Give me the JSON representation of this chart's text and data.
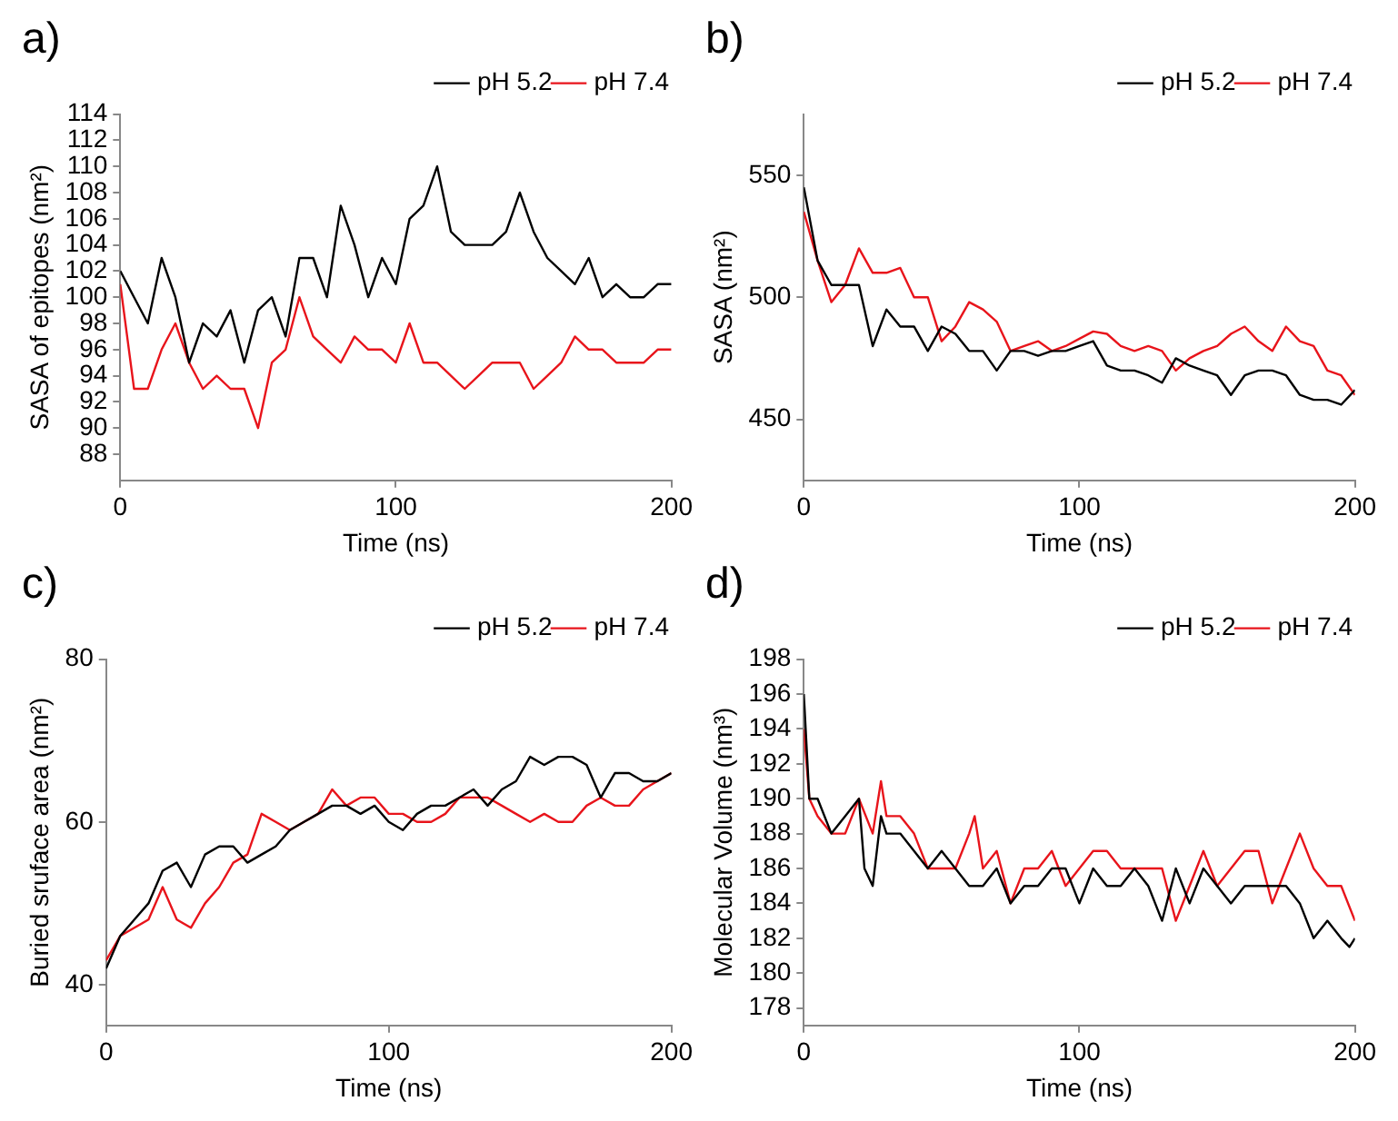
{
  "chart_data": [
    {
      "type": "line",
      "title": "a)",
      "xlabel": "Time (ns)",
      "ylabel": "SASA of epitopes (nm²)",
      "x": [
        0,
        5,
        10,
        15,
        20,
        25,
        30,
        35,
        40,
        45,
        50,
        55,
        60,
        65,
        70,
        75,
        80,
        85,
        90,
        95,
        100,
        105,
        110,
        115,
        120,
        125,
        130,
        135,
        140,
        145,
        150,
        155,
        160,
        165,
        170,
        175,
        180,
        185,
        190,
        195,
        200
      ],
      "xlim": [
        0,
        200
      ],
      "xticks": [
        0,
        100,
        200
      ],
      "ylim": [
        86,
        114
      ],
      "yticks": [
        88,
        90,
        92,
        94,
        96,
        98,
        100,
        102,
        104,
        106,
        108,
        110,
        112,
        114
      ],
      "grid": false,
      "legend": "top right",
      "marker": "none",
      "series": [
        {
          "name": "pH 5.2",
          "color": "#000000",
          "values": [
            102,
            100,
            98,
            103,
            100,
            95,
            98,
            97,
            99,
            95,
            99,
            100,
            97,
            103,
            103,
            100,
            107,
            104,
            100,
            103,
            101,
            106,
            107,
            110,
            105,
            104,
            104,
            104,
            105,
            108,
            105,
            103,
            102,
            101,
            103,
            100,
            101,
            100,
            100,
            101,
            101
          ]
        },
        {
          "name": "pH 7.4",
          "color": "#e8141b",
          "values": [
            101,
            93,
            93,
            96,
            98,
            95,
            93,
            94,
            93,
            93,
            90,
            95,
            96,
            100,
            97,
            96,
            95,
            97,
            96,
            96,
            95,
            98,
            95,
            95,
            94,
            93,
            94,
            95,
            95,
            95,
            93,
            94,
            95,
            97,
            96,
            96,
            95,
            95,
            95,
            96,
            96
          ]
        }
      ]
    },
    {
      "type": "line",
      "title": "b)",
      "xlabel": "Time (ns)",
      "ylabel": "SASA (nm²)",
      "x": [
        0,
        5,
        10,
        15,
        20,
        25,
        30,
        35,
        40,
        45,
        50,
        55,
        60,
        65,
        70,
        75,
        80,
        85,
        90,
        95,
        100,
        105,
        110,
        115,
        120,
        125,
        130,
        135,
        140,
        145,
        150,
        155,
        160,
        165,
        170,
        175,
        180,
        185,
        190,
        195,
        200
      ],
      "xlim": [
        0,
        200
      ],
      "xticks": [
        0,
        100,
        200
      ],
      "ylim": [
        425,
        575
      ],
      "yticks": [
        450,
        500,
        550
      ],
      "grid": false,
      "legend": "top right",
      "marker": "none",
      "series": [
        {
          "name": "pH 5.2",
          "color": "#000000",
          "values": [
            545,
            515,
            505,
            505,
            505,
            480,
            495,
            488,
            488,
            478,
            488,
            485,
            478,
            478,
            470,
            478,
            478,
            476,
            478,
            478,
            480,
            482,
            472,
            470,
            470,
            468,
            465,
            475,
            472,
            470,
            468,
            460,
            468,
            470,
            470,
            468,
            460,
            458,
            458,
            456,
            462
          ]
        },
        {
          "name": "pH 7.4",
          "color": "#e8141b",
          "values": [
            535,
            515,
            498,
            505,
            520,
            510,
            510,
            512,
            500,
            500,
            482,
            488,
            498,
            495,
            490,
            478,
            480,
            482,
            478,
            480,
            483,
            486,
            485,
            480,
            478,
            480,
            478,
            470,
            475,
            478,
            480,
            485,
            488,
            482,
            478,
            488,
            482,
            480,
            470,
            468,
            460
          ]
        }
      ]
    },
    {
      "type": "line",
      "title": "c)",
      "xlabel": "Time (ns)",
      "ylabel": "Buried sruface area (nm²)",
      "x": [
        0,
        5,
        10,
        15,
        20,
        25,
        30,
        35,
        40,
        45,
        50,
        55,
        60,
        65,
        70,
        75,
        80,
        85,
        90,
        95,
        100,
        105,
        110,
        115,
        120,
        125,
        130,
        135,
        140,
        145,
        150,
        155,
        160,
        165,
        170,
        175,
        180,
        185,
        190,
        195,
        200
      ],
      "xlim": [
        0,
        200
      ],
      "xticks": [
        0,
        100,
        200
      ],
      "ylim": [
        35,
        80
      ],
      "yticks": [
        40,
        60,
        80
      ],
      "grid": false,
      "legend": "top right",
      "marker": "none",
      "series": [
        {
          "name": "pH 5.2",
          "color": "#000000",
          "values": [
            42,
            46,
            48,
            50,
            54,
            55,
            52,
            56,
            57,
            57,
            55,
            56,
            57,
            59,
            60,
            61,
            62,
            62,
            61,
            62,
            60,
            59,
            61,
            62,
            62,
            63,
            64,
            62,
            64,
            65,
            68,
            67,
            68,
            68,
            67,
            63,
            66,
            66,
            65,
            65,
            66
          ]
        },
        {
          "name": "pH 7.4",
          "color": "#e8141b",
          "values": [
            43,
            46,
            47,
            48,
            52,
            48,
            47,
            50,
            52,
            55,
            56,
            61,
            60,
            59,
            60,
            61,
            64,
            62,
            63,
            63,
            61,
            61,
            60,
            60,
            61,
            63,
            63,
            63,
            62,
            61,
            60,
            61,
            60,
            60,
            62,
            63,
            62,
            62,
            64,
            65,
            66
          ]
        }
      ]
    },
    {
      "type": "line",
      "title": "d)",
      "xlabel": "Time (ns)",
      "ylabel": "Molecular Volume (nm³)",
      "x": [
        0,
        2,
        5,
        10,
        15,
        20,
        22,
        25,
        28,
        30,
        35,
        40,
        45,
        50,
        55,
        60,
        65,
        70,
        75,
        80,
        85,
        90,
        95,
        100,
        105,
        110,
        115,
        120,
        125,
        130,
        135,
        140,
        145,
        150,
        155,
        160,
        165,
        170,
        175,
        180,
        185,
        190,
        195,
        198,
        200
      ],
      "xlim": [
        0,
        200
      ],
      "xticks": [
        0,
        100,
        200
      ],
      "ylim": [
        177,
        198
      ],
      "yticks": [
        178,
        180,
        182,
        184,
        186,
        188,
        190,
        192,
        194,
        196,
        198
      ],
      "grid": false,
      "legend": "top right",
      "marker": "none",
      "series": [
        {
          "name": "pH 5.2",
          "color": "#000000",
          "values": [
            196,
            190,
            190,
            188,
            189,
            190,
            186,
            185,
            189,
            188,
            188,
            187,
            186,
            187,
            186,
            185,
            185,
            186,
            184,
            185,
            185,
            186,
            186,
            184,
            186,
            185,
            185,
            186,
            185,
            183,
            186,
            184,
            186,
            185,
            184,
            185,
            185,
            185,
            185,
            184,
            182,
            183,
            182,
            181.5,
            182
          ]
        },
        {
          "name": "pH 7.4",
          "color": "#e8141b",
          "x": [
            0,
            2,
            5,
            10,
            15,
            20,
            25,
            28,
            30,
            35,
            40,
            45,
            50,
            55,
            60,
            62,
            65,
            70,
            75,
            80,
            85,
            90,
            95,
            100,
            105,
            110,
            115,
            120,
            125,
            130,
            135,
            140,
            145,
            150,
            155,
            160,
            165,
            170,
            175,
            180,
            185,
            190,
            195,
            200
          ],
          "values": [
            194,
            190,
            189,
            188,
            188,
            190,
            188,
            191,
            189,
            189,
            188,
            186,
            186,
            186,
            188,
            189,
            186,
            187,
            184,
            186,
            186,
            187,
            185,
            186,
            187,
            187,
            186,
            186,
            186,
            186,
            183,
            185,
            187,
            185,
            186,
            187,
            187,
            184,
            186,
            188,
            186,
            185,
            185,
            183
          ]
        }
      ]
    }
  ]
}
